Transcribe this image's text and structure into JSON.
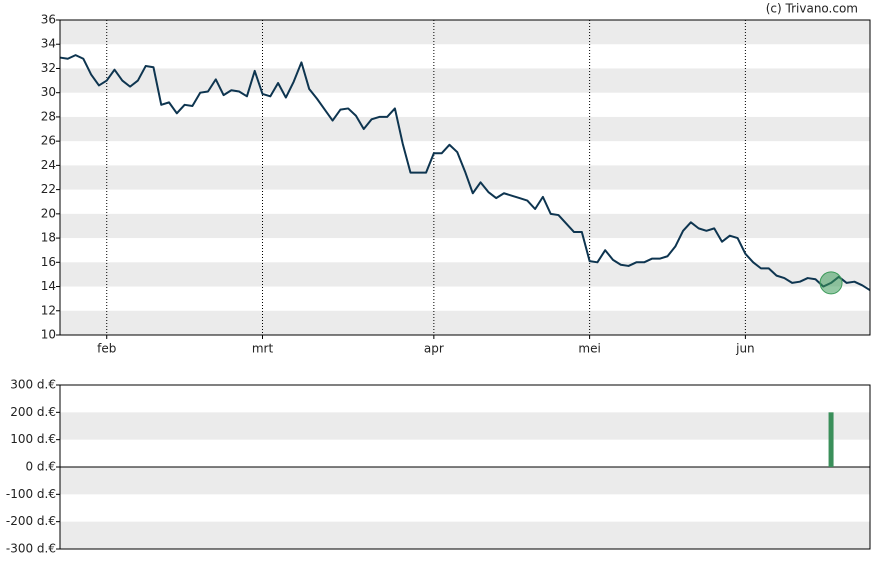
{
  "chart_data": [
    {
      "type": "line",
      "credit": "(c) Trivano.com",
      "categories": [
        null,
        null,
        null,
        null,
        null,
        null,
        "feb",
        null,
        null,
        null,
        null,
        null,
        null,
        null,
        null,
        null,
        null,
        null,
        null,
        null,
        null,
        null,
        null,
        null,
        null,
        null,
        "mrt",
        null,
        null,
        null,
        null,
        null,
        null,
        null,
        null,
        null,
        null,
        null,
        null,
        null,
        null,
        null,
        null,
        null,
        null,
        null,
        null,
        null,
        "apr",
        null,
        null,
        null,
        null,
        null,
        null,
        null,
        null,
        null,
        null,
        null,
        null,
        null,
        null,
        null,
        null,
        null,
        null,
        null,
        "mei",
        null,
        null,
        null,
        null,
        null,
        null,
        null,
        null,
        null,
        null,
        null,
        null,
        null,
        null,
        null,
        null,
        null,
        null,
        null,
        "jun",
        null,
        null,
        null,
        null,
        null,
        null,
        null,
        null,
        null,
        null,
        null,
        null,
        null,
        null,
        null,
        null
      ],
      "series": [
        {
          "color": "#0e3550",
          "values": [
            32.9,
            32.8,
            33.1,
            32.8,
            31.5,
            30.6,
            31.0,
            31.9,
            31.0,
            30.5,
            31.0,
            32.2,
            32.1,
            29.0,
            29.2,
            28.3,
            29.0,
            28.9,
            30.0,
            30.1,
            31.1,
            29.8,
            30.2,
            30.1,
            29.7,
            31.8,
            29.9,
            29.7,
            30.8,
            29.6,
            30.9,
            32.5,
            30.3,
            29.5,
            28.6,
            27.7,
            28.6,
            28.7,
            28.1,
            27.0,
            27.8,
            28.0,
            28.0,
            28.7,
            25.8,
            23.4,
            23.4,
            23.4,
            25.0,
            25.0,
            25.7,
            25.1,
            23.5,
            21.7,
            22.6,
            21.8,
            21.3,
            21.7,
            21.5,
            21.3,
            21.1,
            20.4,
            21.4,
            20.0,
            19.9,
            19.2,
            18.5,
            18.5,
            16.1,
            16.0,
            17.0,
            16.2,
            15.8,
            15.7,
            16.0,
            16.0,
            16.3,
            16.3,
            16.5,
            17.3,
            18.6,
            19.3,
            18.8,
            18.6,
            18.8,
            17.7,
            18.2,
            18.0,
            16.7,
            16.0,
            15.5,
            15.5,
            14.9,
            14.7,
            14.3,
            14.4,
            14.7,
            14.6,
            14.0,
            14.3,
            14.8,
            14.3,
            14.4,
            14.1,
            13.7
          ]
        }
      ],
      "highlight_point": 99,
      "highlight_color": "#3c9a5a",
      "ylim": [
        10,
        36
      ],
      "yticks": [
        10,
        12,
        14,
        16,
        18,
        20,
        22,
        24,
        26,
        28,
        30,
        32,
        34,
        36
      ],
      "grid": "bands"
    },
    {
      "type": "bar",
      "color": "#3a8f5a",
      "values": [
        null,
        null,
        null,
        null,
        null,
        null,
        null,
        null,
        null,
        null,
        null,
        null,
        null,
        null,
        null,
        null,
        null,
        null,
        null,
        null,
        null,
        null,
        null,
        null,
        null,
        null,
        null,
        null,
        null,
        null,
        null,
        null,
        null,
        null,
        null,
        null,
        null,
        null,
        null,
        null,
        null,
        null,
        null,
        null,
        null,
        null,
        null,
        null,
        null,
        null,
        null,
        null,
        null,
        null,
        null,
        null,
        null,
        null,
        null,
        null,
        null,
        null,
        null,
        null,
        null,
        null,
        null,
        null,
        null,
        null,
        null,
        null,
        null,
        null,
        null,
        null,
        null,
        null,
        null,
        null,
        null,
        null,
        null,
        null,
        null,
        null,
        null,
        null,
        null,
        null,
        null,
        null,
        null,
        null,
        null,
        null,
        null,
        null,
        null,
        200,
        null,
        null,
        null,
        null,
        null
      ],
      "ylim": [
        -300,
        300
      ],
      "yticks": [
        {
          "value": -300,
          "label": "-300 d.€"
        },
        {
          "value": -200,
          "label": "-200 d.€"
        },
        {
          "value": -100,
          "label": "-100 d.€"
        },
        {
          "value": 0,
          "label": "0 d.€"
        },
        {
          "value": 100,
          "label": "100 d.€"
        },
        {
          "value": 200,
          "label": "200 d.€"
        },
        {
          "value": 300,
          "label": "300 d.€"
        }
      ],
      "grid": "bands"
    }
  ]
}
